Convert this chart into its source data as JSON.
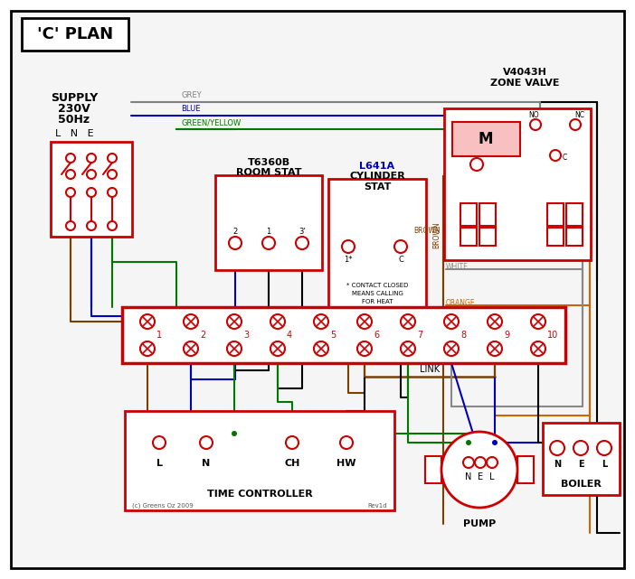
{
  "title": "'C' PLAN",
  "bg_color": "#ffffff",
  "colors": {
    "grey": "#808080",
    "blue": "#0000bb",
    "green": "#007700",
    "brown": "#7B3F00",
    "white_wire": "#888888",
    "orange": "#cc6600",
    "black": "#000000",
    "red": "#cc0000"
  },
  "labels": {
    "title": "'C' PLAN",
    "supply": "SUPPLY\n230V\n50Hz",
    "lne": "L   N   E",
    "zone_valve_1": "V4043H",
    "zone_valve_2": "ZONE VALVE",
    "room_stat_1": "T6360B",
    "room_stat_2": "ROOM STAT",
    "cyl_stat_1": "L641A",
    "cyl_stat_2": "CYLINDER",
    "cyl_stat_3": "STAT",
    "time_ctrl": "TIME CONTROLLER",
    "pump": "PUMP",
    "boiler": "BOILER",
    "link": "LINK",
    "grey_label": "GREY",
    "blue_label": "BLUE",
    "gy_label": "GREEN/YELLOW",
    "brown_label": "BROWN",
    "white_label": "WHITE",
    "orange_label": "ORANGE",
    "contact_note": "* CONTACT CLOSED\nMEANS CALLING\nFOR HEAT",
    "copyright": "(c) Greens Oz 2009",
    "rev": "Rev1d"
  }
}
